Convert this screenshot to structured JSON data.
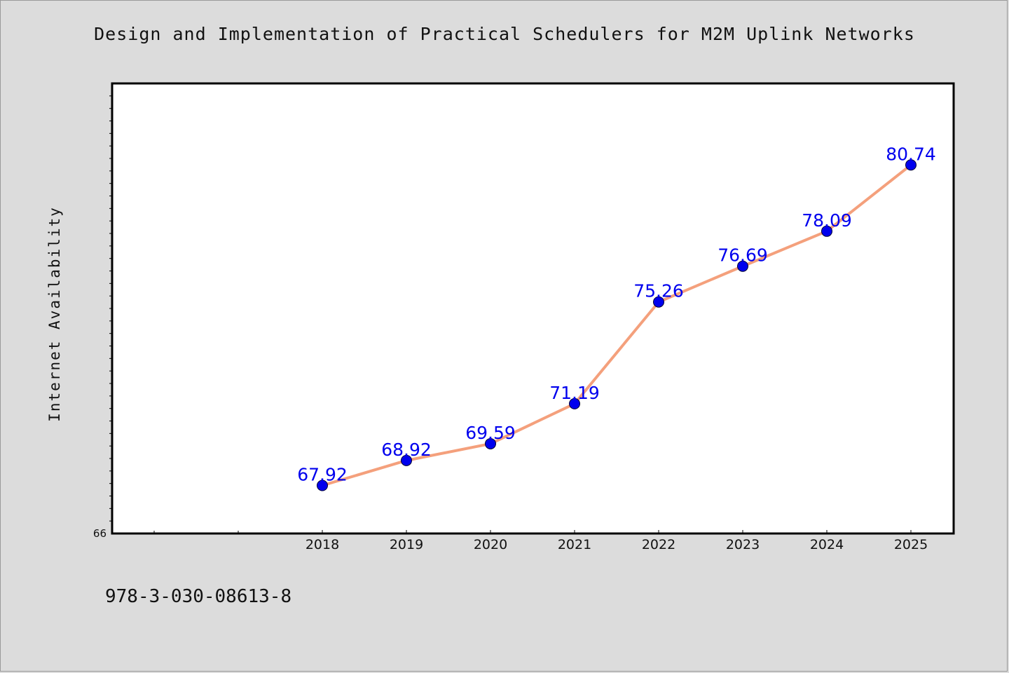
{
  "header": {
    "title": "Design and Implementation of Practical Schedulers for M2M Uplink Networks"
  },
  "footer": {
    "isbn": "978-3-030-08613-8"
  },
  "chart_data": {
    "type": "line",
    "title": "Design and Implementation of Practical Schedulers for M2M Uplink Networks",
    "xlabel": "",
    "ylabel": "Internet Availability",
    "categories": [
      "2018",
      "2019",
      "2020",
      "2021",
      "2022",
      "2023",
      "2024",
      "2025"
    ],
    "series": [
      {
        "values": [
          67.92,
          68.92,
          69.59,
          71.19,
          75.26,
          76.69,
          78.09,
          80.74
        ],
        "data_labels": [
          "67.92",
          "68.92",
          "69.59",
          "71.19",
          "75.26",
          "76.69",
          "78.09",
          "80.74"
        ],
        "line_color": "#f4a07c",
        "marker_color": "#0000ee",
        "label_color": "#0000ee"
      }
    ],
    "ylim": [
      66,
      84
    ],
    "y_tick_labels": [
      "66"
    ],
    "grid": false,
    "legend": "none"
  }
}
